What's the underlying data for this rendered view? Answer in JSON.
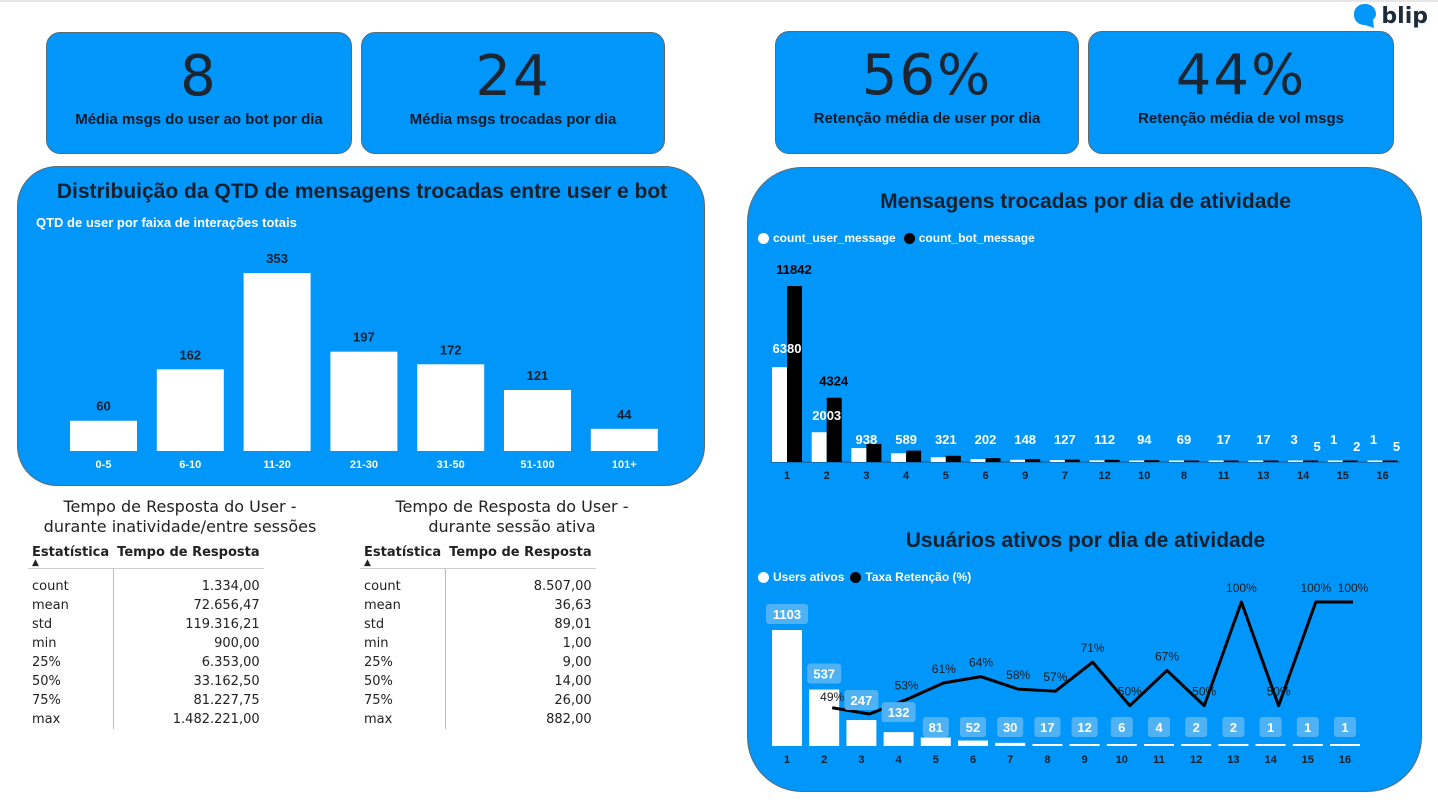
{
  "brand": {
    "name": "blip",
    "icon": "chat-bubble-icon",
    "color": "#0096fa"
  },
  "kpis": [
    {
      "value": "8",
      "label": "Média msgs do user ao bot por dia"
    },
    {
      "value": "24",
      "label": "Média msgs trocadas por dia"
    },
    {
      "value": "56%",
      "label": "Retenção média de user por dia"
    },
    {
      "value": "44%",
      "label": "Retenção média de vol msgs"
    }
  ],
  "colors": {
    "panel": "#0096fa",
    "bar_light": "#ffffff",
    "bar_dark": "#000000",
    "label_box": "#4fb2f5"
  },
  "chart_data": [
    {
      "type": "bar",
      "title": "Distribuição da QTD de mensagens trocadas entre user e bot",
      "subtitle": "QTD de user por faixa de interações totais",
      "categories": [
        "0-5",
        "6-10",
        "11-20",
        "21-30",
        "31-50",
        "51-100",
        "101+"
      ],
      "values": [
        60,
        162,
        353,
        197,
        172,
        121,
        44
      ],
      "ylim": [
        0,
        353
      ],
      "grid": false
    },
    {
      "type": "bar",
      "title": "Mensagens trocadas por dia de atividade",
      "legend_position": "top-left",
      "categories": [
        "1",
        "2",
        "3",
        "4",
        "5",
        "6",
        "9",
        "7",
        "12",
        "10",
        "8",
        "11",
        "13",
        "14",
        "15",
        "16"
      ],
      "series": [
        {
          "name": "count_user_message",
          "values": [
            6380,
            2003,
            938,
            589,
            321,
            202,
            148,
            127,
            112,
            94,
            69,
            17,
            17,
            3,
            1,
            1
          ]
        },
        {
          "name": "count_bot_message",
          "values": [
            11842,
            4324,
            null,
            null,
            null,
            null,
            null,
            null,
            null,
            null,
            null,
            null,
            null,
            5,
            2,
            5
          ]
        }
      ],
      "grid": false
    },
    {
      "type": "bar",
      "title": "Usuários ativos por dia de atividade",
      "legend_position": "top-left",
      "categories": [
        "1",
        "2",
        "3",
        "4",
        "5",
        "6",
        "7",
        "8",
        "9",
        "10",
        "11",
        "12",
        "13",
        "14",
        "15",
        "16"
      ],
      "series": [
        {
          "name": "Users ativos",
          "type": "bar",
          "values": [
            1103,
            537,
            247,
            132,
            81,
            52,
            30,
            17,
            12,
            6,
            4,
            2,
            2,
            1,
            1,
            1
          ]
        },
        {
          "name": "Taxa Retenção (%)",
          "type": "line",
          "values": [
            null,
            49,
            46,
            53,
            61,
            64,
            58,
            57,
            71,
            50,
            67,
            50,
            100,
            50,
            100,
            100
          ]
        }
      ],
      "value_labels": {
        "line": [
          "",
          "49%",
          "",
          "53%",
          "61%",
          "64%",
          "58%",
          "57%",
          "71%",
          "50%",
          "67%",
          "50%",
          "100%",
          "50%",
          "100%",
          "100%"
        ]
      },
      "grid": false
    }
  ],
  "tables": [
    {
      "title_line1": "Tempo de Resposta do User -",
      "title_line2": "durante inatividade/entre sessões",
      "headers": [
        "Estatística",
        "Tempo de Resposta"
      ],
      "sort_indicator": "▲",
      "rows": [
        [
          "count",
          "1.334,00"
        ],
        [
          "mean",
          "72.656,47"
        ],
        [
          "std",
          "119.316,21"
        ],
        [
          "min",
          "900,00"
        ],
        [
          "25%",
          "6.353,00"
        ],
        [
          "50%",
          "33.162,50"
        ],
        [
          "75%",
          "81.227,75"
        ],
        [
          "max",
          "1.482.221,00"
        ]
      ]
    },
    {
      "title_line1": "Tempo de Resposta do User -",
      "title_line2": "durante sessão ativa",
      "headers": [
        "Estatística",
        "Tempo de Resposta"
      ],
      "sort_indicator": "▲",
      "rows": [
        [
          "count",
          "8.507,00"
        ],
        [
          "mean",
          "36,63"
        ],
        [
          "std",
          "89,01"
        ],
        [
          "min",
          "1,00"
        ],
        [
          "25%",
          "9,00"
        ],
        [
          "50%",
          "14,00"
        ],
        [
          "75%",
          "26,00"
        ],
        [
          "max",
          "882,00"
        ]
      ]
    }
  ]
}
